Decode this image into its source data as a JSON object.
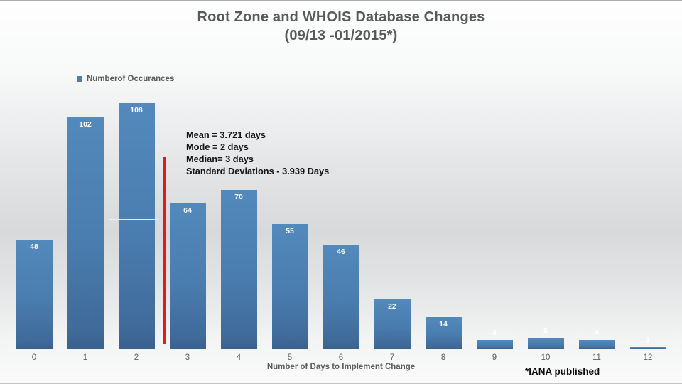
{
  "slide": {
    "title_line1": "Root Zone and WHOIS Database Changes",
    "title_line2": "(09/13 -01/2015*)",
    "footnote": "*IANA published"
  },
  "legend": {
    "label": "Numberof Occurances",
    "marker_color": "#4d7ead"
  },
  "annotation": {
    "text": "Mean = 3.721 days\nMode = 2 days\nMedian= 3 days\nStandard Deviations - 3.939 Days"
  },
  "chart_data": {
    "type": "bar",
    "title": "Root Zone and WHOIS Database Changes (09/13 -01/2015*)",
    "series_name": "Numberof Occurances",
    "categories": [
      "0",
      "1",
      "2",
      "3",
      "4",
      "5",
      "6",
      "7",
      "8",
      "9",
      "10",
      "11",
      "12"
    ],
    "values": [
      48,
      102,
      108,
      64,
      70,
      55,
      46,
      22,
      14,
      4,
      5,
      4,
      1
    ],
    "xlabel": "Number of Days to Implement Change",
    "ylabel": "",
    "ylim": [
      0,
      115
    ],
    "grid": false,
    "data_labels": "inside-end-white",
    "legend_position": "top-left",
    "bar_color": "#4f81bd",
    "mean_marker_line_color": "#da1e1e",
    "stats": {
      "mean_days": 3.721,
      "mode_days": 2,
      "median_days": 3,
      "std_dev_days": 3.939
    }
  }
}
